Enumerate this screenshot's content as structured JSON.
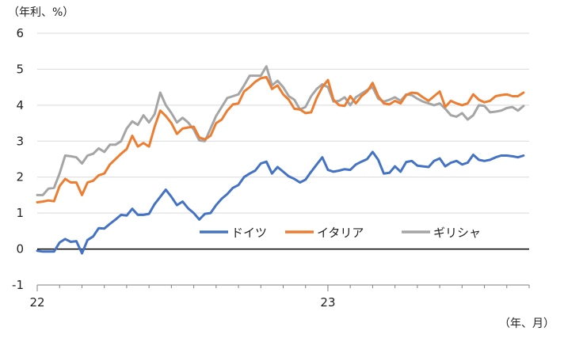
{
  "chart_data": {
    "type": "line",
    "y_unit_label": "（年利、%）",
    "x_unit_label": "（年、月）",
    "ylim": [
      -1,
      6
    ],
    "yticks": [
      -1,
      0,
      1,
      2,
      3,
      4,
      5,
      6
    ],
    "x_tick_labels": [
      {
        "label": "22",
        "week": 0
      },
      {
        "label": "23",
        "week": 52
      }
    ],
    "xlim_weeks": [
      0,
      88
    ],
    "grid": true,
    "legend_position": "inside-lower-right",
    "series": [
      {
        "name": "ドイツ",
        "color": "#4472C4",
        "values": [
          -0.05,
          -0.07,
          -0.07,
          -0.07,
          0.18,
          0.28,
          0.2,
          0.22,
          -0.12,
          0.25,
          0.35,
          0.58,
          0.57,
          0.7,
          0.82,
          0.95,
          0.93,
          1.12,
          0.95,
          0.95,
          0.98,
          1.25,
          1.45,
          1.65,
          1.45,
          1.22,
          1.32,
          1.13,
          1.0,
          0.82,
          0.98,
          1.0,
          1.22,
          1.4,
          1.53,
          1.7,
          1.78,
          2.0,
          2.1,
          2.18,
          2.38,
          2.43,
          2.1,
          2.28,
          2.15,
          2.02,
          1.95,
          1.85,
          1.93,
          2.15,
          2.35,
          2.55,
          2.2,
          2.15,
          2.18,
          2.22,
          2.2,
          2.35,
          2.43,
          2.5,
          2.7,
          2.48,
          2.1,
          2.12,
          2.3,
          2.15,
          2.42,
          2.45,
          2.32,
          2.3,
          2.28,
          2.45,
          2.52,
          2.3,
          2.4,
          2.45,
          2.35,
          2.4,
          2.62,
          2.48,
          2.45,
          2.48,
          2.55,
          2.6,
          2.6,
          2.58,
          2.55,
          2.6
        ]
      },
      {
        "name": "イタリア",
        "color": "#ED7D31",
        "values": [
          1.3,
          1.32,
          1.35,
          1.33,
          1.75,
          1.95,
          1.85,
          1.85,
          1.5,
          1.85,
          1.9,
          2.05,
          2.1,
          2.35,
          2.5,
          2.65,
          2.78,
          3.15,
          2.85,
          2.95,
          2.85,
          3.4,
          3.85,
          3.7,
          3.5,
          3.2,
          3.35,
          3.38,
          3.4,
          3.1,
          3.05,
          3.15,
          3.5,
          3.6,
          3.85,
          4.02,
          4.05,
          4.38,
          4.5,
          4.65,
          4.75,
          4.78,
          4.45,
          4.55,
          4.3,
          4.15,
          3.9,
          3.88,
          3.78,
          3.8,
          4.2,
          4.5,
          4.7,
          4.15,
          4.0,
          3.98,
          4.25,
          4.05,
          4.25,
          4.38,
          4.62,
          4.25,
          4.05,
          4.02,
          4.12,
          4.05,
          4.28,
          4.35,
          4.33,
          4.22,
          4.12,
          4.25,
          4.38,
          3.95,
          4.12,
          4.05,
          4.0,
          4.05,
          4.3,
          4.15,
          4.08,
          4.12,
          4.25,
          4.28,
          4.3,
          4.25,
          4.25,
          4.35
        ]
      },
      {
        "name": "ギリシャ",
        "color": "#A5A5A5",
        "values": [
          1.5,
          1.5,
          1.68,
          1.7,
          2.1,
          2.6,
          2.58,
          2.55,
          2.38,
          2.6,
          2.65,
          2.8,
          2.7,
          2.9,
          2.9,
          3.0,
          3.35,
          3.55,
          3.45,
          3.72,
          3.52,
          3.75,
          4.35,
          4.0,
          3.78,
          3.52,
          3.65,
          3.52,
          3.32,
          3.02,
          3.0,
          3.35,
          3.7,
          3.95,
          4.2,
          4.25,
          4.3,
          4.55,
          4.82,
          4.82,
          4.82,
          5.08,
          4.55,
          4.68,
          4.5,
          4.25,
          4.15,
          3.88,
          3.95,
          4.25,
          4.45,
          4.58,
          4.5,
          4.1,
          4.12,
          4.22,
          4.0,
          4.22,
          4.32,
          4.42,
          4.5,
          4.18,
          4.1,
          4.15,
          4.22,
          4.12,
          4.3,
          4.28,
          4.18,
          4.1,
          4.05,
          4.0,
          4.05,
          3.9,
          3.72,
          3.68,
          3.78,
          3.6,
          3.72,
          4.0,
          3.98,
          3.8,
          3.82,
          3.85,
          3.92,
          3.95,
          3.85,
          3.98
        ]
      }
    ]
  }
}
